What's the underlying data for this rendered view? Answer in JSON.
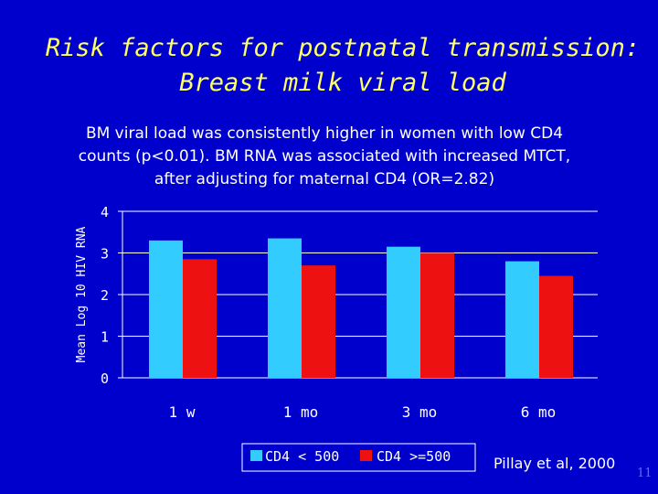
{
  "slide": {
    "title_line1": "Risk factors for postnatal transmission:",
    "title_line2": "Breast milk viral load",
    "subtitle_line1": "BM viral load was consistently higher in women with low CD4",
    "subtitle_line2": "counts (p<0.01).  BM RNA was associated with increased MTCT,",
    "subtitle_line3": "after adjusting for maternal CD4 (OR=2.82)",
    "citation": "Pillay et al, 2000",
    "slide_number": "11"
  },
  "colors": {
    "background": "#0000CC",
    "title": "#FFFF66",
    "series1": "#33CCFF",
    "series2": "#EE1111",
    "gridline": "#FFFFFF"
  },
  "chart_data": {
    "type": "bar",
    "title": "",
    "xlabel": "",
    "ylabel": "Mean Log 10 HIV RNA",
    "categories": [
      "1 w",
      "1 mo",
      "3 mo",
      "6 mo"
    ],
    "series": [
      {
        "name": "CD4 < 500",
        "values": [
          3.3,
          3.35,
          3.15,
          2.8
        ]
      },
      {
        "name": "CD4 >=500",
        "values": [
          2.85,
          2.7,
          3.0,
          2.45
        ]
      }
    ],
    "ylim": [
      0,
      4
    ],
    "yticks": [
      "0",
      "1",
      "2",
      "3",
      "4"
    ],
    "grid": true,
    "legend": "bottom"
  }
}
